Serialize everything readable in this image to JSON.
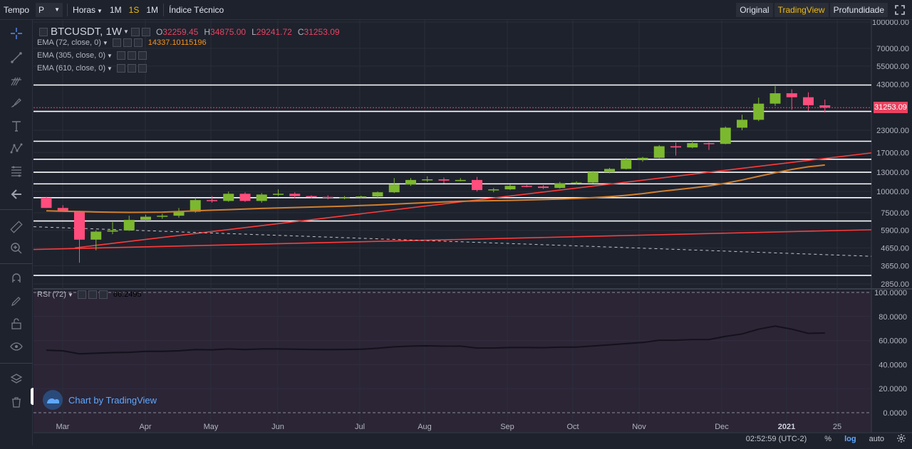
{
  "toolbar": {
    "time_label": "Tempo",
    "chart_type_value": "P",
    "interval_label": "Horas",
    "intervals": [
      "1M",
      "1S",
      "1M"
    ],
    "active_interval_index": 1,
    "indicators_label": "Índice Técnico",
    "views": [
      "Original",
      "TradingView",
      "Profundidade"
    ],
    "active_view_index": 1
  },
  "legend": {
    "symbol": "BTCUSDT, 1W",
    "o_key": "O",
    "o_val": "32259.45",
    "h_key": "H",
    "h_val": "34875.00",
    "l_key": "L",
    "l_val": "29241.72",
    "c_key": "C",
    "c_val": "31253.09",
    "ema72": "EMA (72, close, 0)",
    "ema72_val": "14337.10115196",
    "ema305": "EMA (305, close, 0)",
    "ema610": "EMA (610, close, 0)",
    "rsi": "RSI (72)",
    "rsi_val": "66.2495"
  },
  "price_axis": {
    "labels": [
      "100000.00",
      "70000.00",
      "55000.00",
      "43000.00",
      "31253.09",
      "23000.00",
      "17000.00",
      "13000.00",
      "10000.00",
      "7500.00",
      "5900.00",
      "4650.00",
      "3650.00",
      "2850.00"
    ],
    "current": "31253.09"
  },
  "rsi_axis": {
    "labels": [
      "100.0000",
      "80.0000",
      "60.0000",
      "40.0000",
      "20.0000",
      "0.0000"
    ]
  },
  "time_axis": {
    "labels": [
      "Mar",
      "Apr",
      "May",
      "Jun",
      "Jul",
      "Aug",
      "Sep",
      "Oct",
      "Nov",
      "Dec",
      "2021",
      "25"
    ]
  },
  "branding": {
    "text": "Chart by TradingView"
  },
  "status": {
    "time": "02:52:59 (UTC-2)",
    "percent": "%",
    "log": "log",
    "auto": "auto"
  },
  "colors": {
    "bg": "#1e222d",
    "up": "#7cb82f",
    "down": "#ff4d7d",
    "ema72": "#d1802e",
    "ema_red": "#ff3b3b",
    "rsi_bg": "#2b2536"
  },
  "chart_data": {
    "type": "candlestick",
    "symbol": "BTCUSDT",
    "interval": "1W",
    "scale": "log",
    "candles": [
      {
        "o": 9200,
        "h": 9300,
        "l": 8000,
        "c": 8000
      },
      {
        "o": 8000,
        "h": 8300,
        "l": 7600,
        "c": 7650
      },
      {
        "o": 7650,
        "h": 7700,
        "l": 3800,
        "c": 5200
      },
      {
        "o": 5200,
        "h": 5900,
        "l": 4500,
        "c": 5800
      },
      {
        "o": 5800,
        "h": 6600,
        "l": 5600,
        "c": 5900
      },
      {
        "o": 5900,
        "h": 7200,
        "l": 5850,
        "c": 6800
      },
      {
        "o": 6800,
        "h": 7300,
        "l": 6600,
        "c": 7100
      },
      {
        "o": 7100,
        "h": 7400,
        "l": 6900,
        "c": 7200
      },
      {
        "o": 7200,
        "h": 8000,
        "l": 7000,
        "c": 7600
      },
      {
        "o": 7600,
        "h": 9200,
        "l": 7500,
        "c": 8900
      },
      {
        "o": 8900,
        "h": 9400,
        "l": 8600,
        "c": 8800
      },
      {
        "o": 8800,
        "h": 10000,
        "l": 8700,
        "c": 9700
      },
      {
        "o": 9700,
        "h": 9900,
        "l": 8700,
        "c": 8800
      },
      {
        "o": 8800,
        "h": 9800,
        "l": 8600,
        "c": 9600
      },
      {
        "o": 9600,
        "h": 10300,
        "l": 9400,
        "c": 9700
      },
      {
        "o": 9700,
        "h": 9900,
        "l": 9100,
        "c": 9400
      },
      {
        "o": 9400,
        "h": 9500,
        "l": 9100,
        "c": 9300
      },
      {
        "o": 9300,
        "h": 9500,
        "l": 9000,
        "c": 9200
      },
      {
        "o": 9200,
        "h": 9400,
        "l": 9000,
        "c": 9250
      },
      {
        "o": 9250,
        "h": 9450,
        "l": 9150,
        "c": 9350
      },
      {
        "o": 9350,
        "h": 10000,
        "l": 9200,
        "c": 9900
      },
      {
        "o": 9900,
        "h": 12000,
        "l": 9800,
        "c": 11000
      },
      {
        "o": 11000,
        "h": 12000,
        "l": 10800,
        "c": 11700
      },
      {
        "o": 11700,
        "h": 12300,
        "l": 11400,
        "c": 11800
      },
      {
        "o": 11800,
        "h": 12100,
        "l": 11200,
        "c": 11600
      },
      {
        "o": 11600,
        "h": 12000,
        "l": 11500,
        "c": 11700
      },
      {
        "o": 11700,
        "h": 12200,
        "l": 10000,
        "c": 10200
      },
      {
        "o": 10200,
        "h": 10500,
        "l": 9900,
        "c": 10300
      },
      {
        "o": 10300,
        "h": 11000,
        "l": 10200,
        "c": 10800
      },
      {
        "o": 10800,
        "h": 10950,
        "l": 10600,
        "c": 10700
      },
      {
        "o": 10700,
        "h": 10900,
        "l": 10350,
        "c": 10500
      },
      {
        "o": 10500,
        "h": 11400,
        "l": 10400,
        "c": 11200
      },
      {
        "o": 11200,
        "h": 11500,
        "l": 11000,
        "c": 11300
      },
      {
        "o": 11300,
        "h": 13200,
        "l": 11200,
        "c": 13000
      },
      {
        "o": 13000,
        "h": 13800,
        "l": 12800,
        "c": 13600
      },
      {
        "o": 13600,
        "h": 15800,
        "l": 13500,
        "c": 15500
      },
      {
        "o": 15500,
        "h": 16000,
        "l": 15000,
        "c": 15800
      },
      {
        "o": 15800,
        "h": 18800,
        "l": 15700,
        "c": 18500
      },
      {
        "o": 18500,
        "h": 19500,
        "l": 16300,
        "c": 18200
      },
      {
        "o": 18200,
        "h": 19900,
        "l": 18000,
        "c": 19300
      },
      {
        "o": 19300,
        "h": 19500,
        "l": 17600,
        "c": 19100
      },
      {
        "o": 19100,
        "h": 24200,
        "l": 19000,
        "c": 23800
      },
      {
        "o": 23800,
        "h": 28400,
        "l": 23000,
        "c": 26500
      },
      {
        "o": 26500,
        "h": 35800,
        "l": 26000,
        "c": 33000
      },
      {
        "o": 33000,
        "h": 41900,
        "l": 32000,
        "c": 38000
      },
      {
        "o": 38000,
        "h": 40100,
        "l": 30400,
        "c": 36000
      },
      {
        "o": 36000,
        "h": 38500,
        "l": 30000,
        "c": 32300
      },
      {
        "o": 32259.45,
        "h": 34875.0,
        "l": 29241.72,
        "c": 31253.09
      }
    ],
    "horizontal_levels": [
      42500,
      29700,
      19800,
      15500,
      13000,
      11100,
      9200,
      6700,
      3200
    ],
    "ema72": [
      7700,
      7650,
      7620,
      7580,
      7550,
      7530,
      7540,
      7560,
      7620,
      7700,
      7760,
      7820,
      7880,
      7950,
      8000,
      8050,
      8100,
      8150,
      8200,
      8270,
      8340,
      8430,
      8520,
      8600,
      8680,
      8760,
      8800,
      8830,
      8870,
      8920,
      8970,
      9030,
      9100,
      9200,
      9330,
      9500,
      9720,
      10000,
      10250,
      10500,
      10800,
      11200,
      11700,
      12300,
      12900,
      13500,
      14000,
      14337
    ],
    "rsi": [
      52,
      51.5,
      49,
      49.5,
      50,
      50.2,
      51,
      51,
      51.5,
      52.5,
      52.3,
      53,
      52.5,
      53,
      53,
      52.8,
      52.6,
      52.5,
      52.6,
      52.8,
      53.6,
      54.8,
      55.4,
      55.6,
      55.3,
      55.4,
      53.8,
      53.8,
      54.2,
      54.2,
      54.1,
      54.5,
      54.6,
      55.5,
      56.4,
      57.5,
      58.4,
      60.3,
      60.3,
      60.8,
      60.8,
      63.5,
      65.5,
      69.5,
      72,
      69.5,
      66,
      66.25
    ],
    "rsi_range": [
      0,
      100
    ],
    "y_axis_range": [
      2850,
      100000
    ]
  }
}
